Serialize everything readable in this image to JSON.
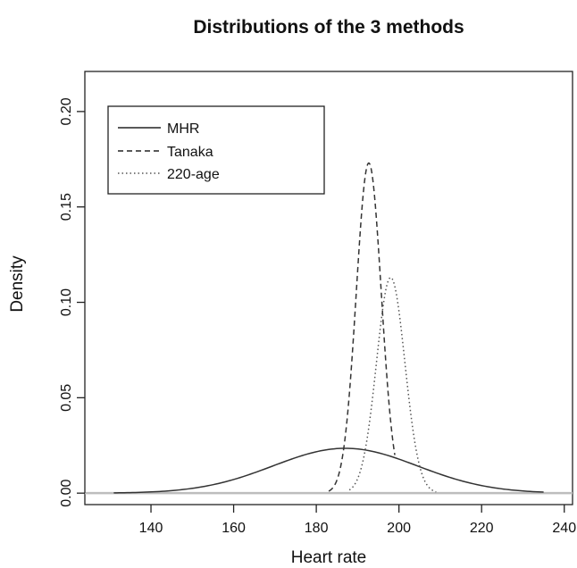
{
  "chart_data": {
    "type": "line",
    "title": "Distributions of the 3 methods",
    "xlabel": "Heart rate",
    "ylabel": "Density",
    "xlim": [
      124,
      242
    ],
    "ylim": [
      -0.006,
      0.221
    ],
    "xticks": [
      140,
      160,
      180,
      200,
      220,
      240
    ],
    "yticks": [
      "0.00",
      "0.05",
      "0.10",
      "0.15",
      "0.20"
    ],
    "grid": false,
    "legend_position": "top-left",
    "baseline": {
      "y": 0,
      "color": "#bdbdbd"
    },
    "series": [
      {
        "name": "MHR",
        "style": "solid",
        "color": "#333333",
        "x_range": [
          131,
          235
        ],
        "peak_x": 187,
        "peak_y": 0.0235
      },
      {
        "name": "Tanaka",
        "style": "dashed",
        "color": "#333333",
        "x_range": [
          183,
          199
        ],
        "peak_x": 192.7,
        "peak_y": 0.173
      },
      {
        "name": "220-age",
        "style": "dotted",
        "color": "#555555",
        "x_range": [
          188,
          209
        ],
        "peak_x": 198,
        "peak_y": 0.113
      }
    ]
  }
}
